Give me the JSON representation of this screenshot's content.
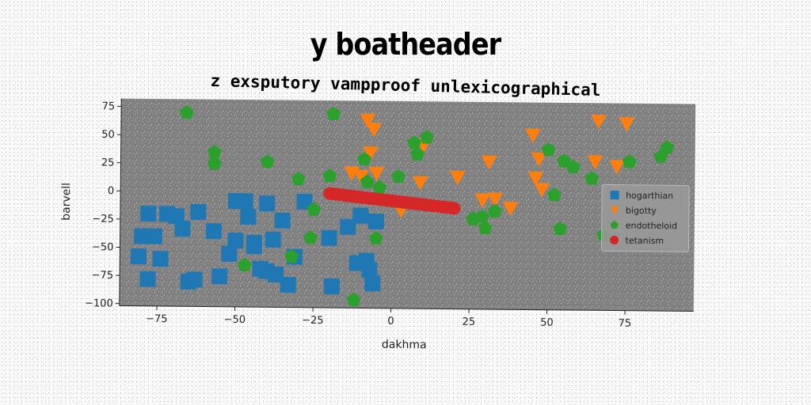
{
  "chart_data": {
    "type": "scatter",
    "title": "y boatheader",
    "subtitle": "z exsputory vampproof unlexicographical",
    "xlabel": "dakhma",
    "ylabel": "barvell",
    "xlim": [
      -87,
      97
    ],
    "ylim": [
      -102,
      82
    ],
    "xticks": [
      -75,
      -50,
      -25,
      0,
      25,
      50,
      75
    ],
    "yticks": [
      75,
      50,
      25,
      0,
      -25,
      -50,
      -75,
      -100
    ],
    "xtick_labels": [
      "−75",
      "−50",
      "−25",
      "0",
      "25",
      "50",
      "75"
    ],
    "ytick_labels": [
      "75",
      "50",
      "25",
      "0",
      "−25",
      "−50",
      "−75",
      "−100"
    ],
    "grid": false,
    "background": "#808080",
    "legend_position": "right",
    "series": [
      {
        "name": "hogarthian",
        "marker": "square",
        "color": "#1f77b4",
        "x": [
          -78,
          -80,
          -72,
          -67,
          -62,
          -57,
          -50,
          -47,
          -40,
          -35,
          -28,
          -81,
          -76,
          -69,
          -63,
          -50,
          -46,
          -44,
          -38,
          -31,
          -52,
          -44,
          -40,
          -33,
          -78,
          -74,
          -65,
          -55,
          -42,
          -37,
          -20,
          -10,
          -5,
          -8,
          -11,
          -7,
          -19,
          -6,
          -14
        ],
        "y": [
          -20,
          -40,
          -20,
          -33,
          -18,
          -35,
          -8,
          -8,
          -10,
          -25,
          -8,
          -58,
          -40,
          -22,
          -78,
          -43,
          -22,
          -45,
          -42,
          -57,
          -55,
          -48,
          -70,
          -82,
          -78,
          -60,
          -80,
          -75,
          -68,
          -73,
          -40,
          -20,
          -25,
          -60,
          -62,
          -68,
          -83,
          -80,
          -30
        ]
      },
      {
        "name": "bigotty",
        "marker": "triangle-down",
        "color": "#ff7f0e",
        "x": [
          -8,
          -6,
          -7,
          10,
          -5,
          -13,
          -10,
          9,
          3,
          21,
          31,
          29,
          33,
          38,
          45,
          47,
          46,
          48,
          66,
          72,
          65,
          75
        ],
        "y": [
          65,
          57,
          36,
          43,
          18,
          18,
          15,
          10,
          -15,
          15,
          29,
          -5,
          -4,
          -12,
          53,
          32,
          15,
          5,
          66,
          26,
          30,
          64
        ]
      },
      {
        "name": "endotheloid",
        "marker": "pentagon",
        "color": "#2ca02c",
        "x": [
          -66,
          -57,
          -57,
          -40,
          -30,
          -25,
          -32,
          -26,
          -47,
          -19,
          -20,
          -9,
          -8,
          -4,
          2,
          7,
          11,
          8,
          26,
          29,
          30,
          33,
          50,
          55,
          58,
          64,
          52,
          68,
          76,
          86,
          88,
          54,
          -12,
          -5
        ],
        "y": [
          70,
          35,
          25,
          27,
          12,
          -15,
          -57,
          -40,
          -65,
          70,
          15,
          30,
          10,
          5,
          15,
          45,
          50,
          35,
          -22,
          -20,
          -30,
          -15,
          40,
          30,
          25,
          15,
          0,
          -35,
          30,
          35,
          43,
          -30,
          -95,
          -40
        ]
      },
      {
        "name": "tetanism",
        "marker": "circle",
        "color": "#d62728",
        "x": [
          -20,
          -19,
          -18,
          -17,
          -16,
          -15,
          -14,
          -13,
          -12,
          -11,
          -10,
          -9,
          -8,
          -7,
          -6,
          -5,
          -4,
          -3,
          -2,
          -1,
          0,
          1,
          2,
          3,
          4,
          5,
          6,
          7,
          8,
          9,
          10,
          11,
          12,
          13,
          14,
          15,
          16,
          17,
          18,
          19,
          20
        ],
        "y": [
          -0.5,
          -0.8,
          -1.1,
          -1.4,
          -1.7,
          -2.1,
          -2.4,
          -2.7,
          -3.0,
          -3.3,
          -3.6,
          -3.9,
          -4.2,
          -4.5,
          -4.8,
          -5.1,
          -5.4,
          -5.7,
          -6.0,
          -6.3,
          -6.6,
          -6.9,
          -7.2,
          -7.5,
          -7.8,
          -8.1,
          -8.4,
          -8.7,
          -9.0,
          -9.3,
          -9.6,
          -9.9,
          -10.2,
          -10.5,
          -10.8,
          -11.1,
          -11.4,
          -11.7,
          -12.0,
          -12.3,
          -12.6
        ]
      }
    ]
  }
}
